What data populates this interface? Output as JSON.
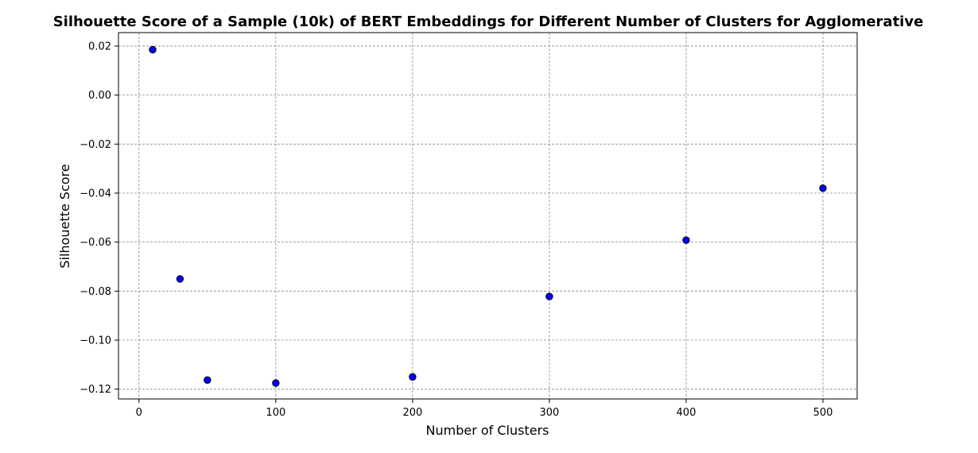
{
  "chart_data": {
    "type": "scatter",
    "title": "Silhouette Score of a Sample (10k) of BERT Embeddings for Different Number of Clusters for Agglomerative",
    "xlabel": "Number of Clusters",
    "ylabel": "Silhouette Score",
    "xlim": [
      -15,
      525
    ],
    "ylim": [
      -0.124,
      0.0255
    ],
    "x_ticks": [
      0,
      100,
      200,
      300,
      400,
      500
    ],
    "y_ticks": [
      0.02,
      0.0,
      -0.02,
      -0.04,
      -0.06,
      -0.08,
      -0.1,
      -0.12
    ],
    "x_tick_labels": [
      "0",
      "100",
      "200",
      "300",
      "400",
      "500"
    ],
    "y_tick_labels": [
      "0.02",
      "0.00",
      "−0.02",
      "−0.04",
      "−0.06",
      "−0.08",
      "−0.10",
      "−0.12"
    ],
    "grid": true,
    "marker_color": "#0000ff",
    "marker_edge_color": "#000000",
    "x": [
      10,
      30,
      50,
      100,
      200,
      300,
      400,
      500
    ],
    "y": [
      0.0185,
      -0.075,
      -0.1163,
      -0.1175,
      -0.115,
      -0.0822,
      -0.0592,
      -0.038
    ]
  }
}
